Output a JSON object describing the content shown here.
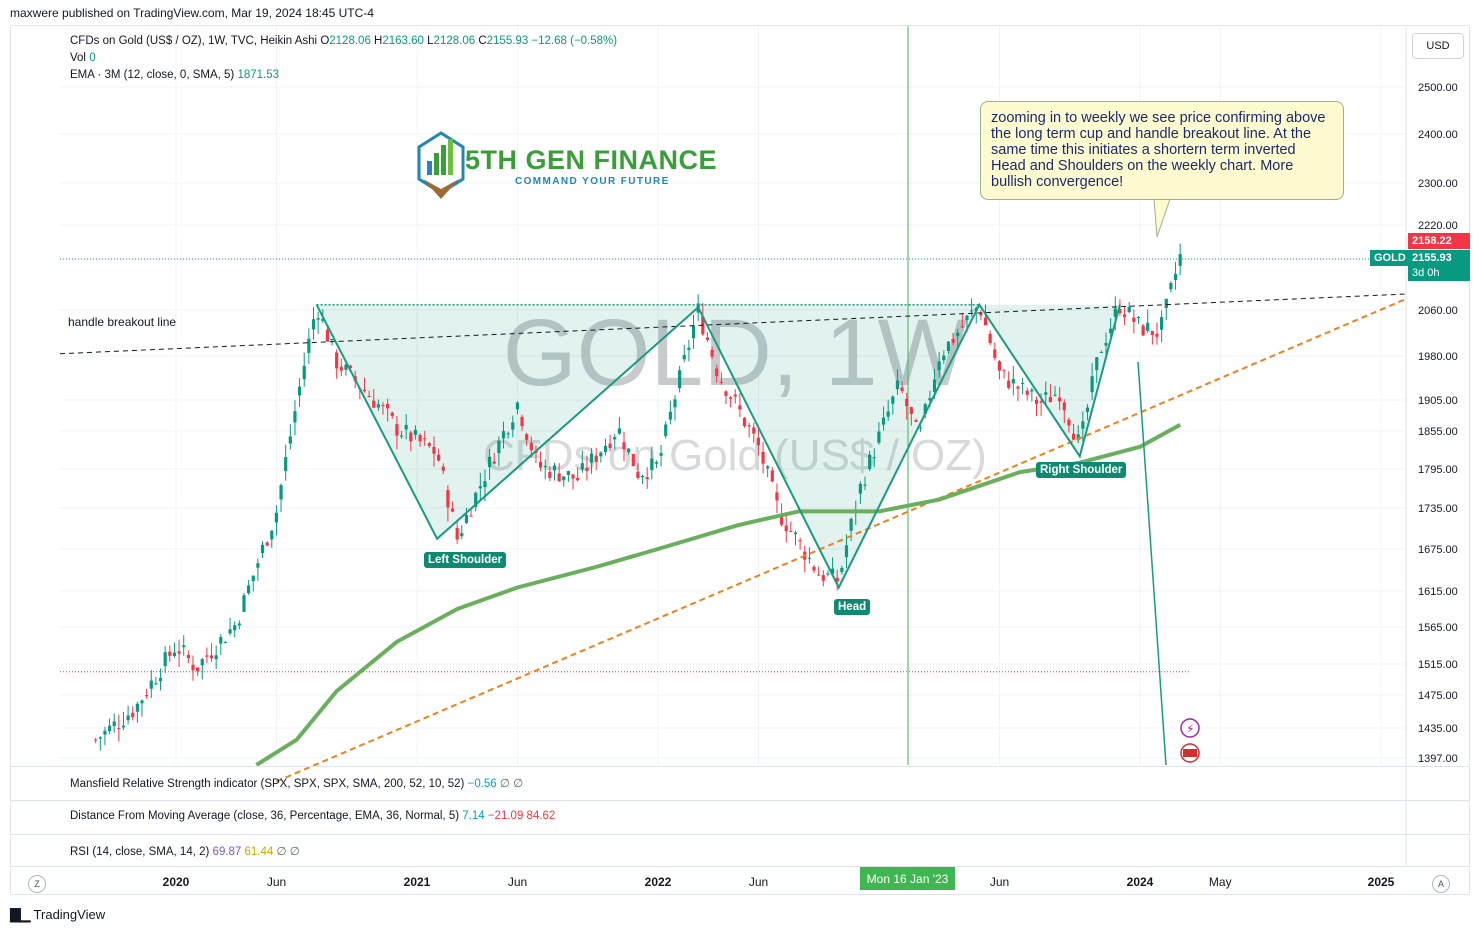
{
  "header": {
    "published_by": "maxwere published on TradingView.com, Mar 19, 2024 18:45 UTC-4"
  },
  "legend": {
    "symbol": "CFDs on Gold (US$ / OZ), 1W, TVC, Heikin Ashi",
    "ohlc": {
      "o_label": "O",
      "o": "2128.06",
      "h_label": "H",
      "h": "2163.60",
      "l_label": "L",
      "l": "2128.06",
      "c_label": "C",
      "c": "2155.93",
      "change": "−12.68 (−0.58%)"
    },
    "vol_label": "Vol",
    "vol": "0",
    "ema_label": "EMA · 3M (12, close, 0, SMA, 5)",
    "ema_value": "1871.53"
  },
  "indicators": {
    "mansfield_label": "Mansfield Relative Strength indicator (SPX, SPX, SPX, SMA, 200, 52, 10, 52)",
    "mansfield_values": [
      "−0.56",
      "∅",
      "∅"
    ],
    "dfma_label": "Distance From Moving Average (close, 36, Percentage, EMA, 36, Normal, 5)",
    "dfma_values": [
      "7.14",
      "−21.09",
      "84.62"
    ],
    "rsi_label": "RSI (14, close, SMA, 14, 2)",
    "rsi_values": [
      "69.87",
      "61.44",
      "∅",
      "∅"
    ]
  },
  "currency": "USD",
  "brand": {
    "title": "5TH GEN FINANCE",
    "subtitle": "COMMAND YOUR FUTURE"
  },
  "note": "zooming in to weekly we see price confirming above the long term cup and handle breakout line.  At the same time this initiates a shortern term inverted Head and Shoulders on the weekly chart.  More bullish convergence!",
  "watermark": {
    "line1": "GOLD, 1W",
    "line2": "CFDs on Gold (US$ / OZ)"
  },
  "annotations": {
    "handle_line": "handle breakout line",
    "left_shoulder": "Left Shoulder",
    "head": "Head",
    "right_shoulder": "Right Shoulder"
  },
  "price_tags": {
    "high": "2158.22",
    "symbol": "GOLD",
    "last": "2155.93",
    "countdown": "3d 0h"
  },
  "x_axis_highlight": "Mon 16 Jan '23",
  "footer": {
    "brand": "TradingView"
  },
  "colors": {
    "up": "#089981",
    "down": "#f23645",
    "pattern": "#1a9a80",
    "ema": "#6aaf5e",
    "trend": "#f0801a",
    "accent": "#3fb750"
  },
  "chart_data": {
    "type": "candlestick",
    "title": "CFDs on Gold (US$ / OZ), 1W, TVC, Heikin Ashi",
    "y_ticks": [
      2500,
      2400,
      2300,
      2220,
      2060,
      1980,
      1905,
      1855,
      1795,
      1735,
      1675,
      1615,
      1565,
      1515,
      1475,
      1435,
      1397
    ],
    "y_tick_labels": [
      "2500.00",
      "2400.00",
      "2300.00",
      "2220.00",
      "2060.00",
      "1980.00",
      "1905.00",
      "1855.00",
      "1795.00",
      "1735.00",
      "1675.00",
      "1615.00",
      "1565.00",
      "1515.00",
      "1475.00",
      "1435.00",
      "1397.00"
    ],
    "x_ticks": [
      "2020",
      "Jun",
      "2021",
      "Jun",
      "2022",
      "Jun",
      "Jun",
      "2024",
      "May",
      "2025"
    ],
    "bold_x_ticks": [
      "2020",
      "2021",
      "2022",
      "2024",
      "2025"
    ],
    "y_range": [
      1380,
      2560
    ],
    "date_range": [
      "2019-09",
      "2025-02"
    ],
    "price_path": [
      [
        "2019-09",
        1420
      ],
      [
        "2019-11",
        1460
      ],
      [
        "2020-01",
        1540
      ],
      [
        "2020-02",
        1510
      ],
      [
        "2020-04",
        1570
      ],
      [
        "2020-06",
        1730
      ],
      [
        "2020-08",
        2070
      ],
      [
        "2020-09",
        1970
      ],
      [
        "2020-11",
        1900
      ],
      [
        "2020-12",
        1860
      ],
      [
        "2021-02",
        1820
      ],
      [
        "2021-03",
        1690
      ],
      [
        "2021-04",
        1760
      ],
      [
        "2021-06",
        1900
      ],
      [
        "2021-07",
        1800
      ],
      [
        "2021-09",
        1780
      ],
      [
        "2021-11",
        1860
      ],
      [
        "2021-12",
        1790
      ],
      [
        "2022-01",
        1800
      ],
      [
        "2022-03",
        2060
      ],
      [
        "2022-04",
        1950
      ],
      [
        "2022-06",
        1830
      ],
      [
        "2022-07",
        1730
      ],
      [
        "2022-09",
        1640
      ],
      [
        "2022-10",
        1630
      ],
      [
        "2022-11",
        1760
      ],
      [
        "2023-01",
        1930
      ],
      [
        "2023-02",
        1840
      ],
      [
        "2023-03",
        1980
      ],
      [
        "2023-05",
        2070
      ],
      [
        "2023-06",
        1950
      ],
      [
        "2023-08",
        1900
      ],
      [
        "2023-09",
        1920
      ],
      [
        "2023-10",
        1830
      ],
      [
        "2023-11",
        1990
      ],
      [
        "2023-12",
        2070
      ],
      [
        "2024-01",
        2030
      ],
      [
        "2024-02",
        2020
      ],
      [
        "2024-03",
        2160
      ]
    ],
    "ema_path": [
      [
        "2020-05",
        1380
      ],
      [
        "2020-07",
        1420
      ],
      [
        "2020-09",
        1480
      ],
      [
        "2020-12",
        1545
      ],
      [
        "2021-03",
        1590
      ],
      [
        "2021-06",
        1620
      ],
      [
        "2021-10",
        1650
      ],
      [
        "2022-01",
        1675
      ],
      [
        "2022-05",
        1710
      ],
      [
        "2022-08",
        1730
      ],
      [
        "2022-12",
        1730
      ],
      [
        "2023-03",
        1748
      ],
      [
        "2023-07",
        1790
      ],
      [
        "2023-10",
        1805
      ],
      [
        "2024-01",
        1830
      ],
      [
        "2024-03",
        1865
      ]
    ],
    "pattern_points": [
      [
        "2020-08",
        2070
      ],
      [
        "2021-02",
        1690
      ],
      [
        "2022-03",
        2065
      ],
      [
        "2022-10",
        1620
      ],
      [
        "2023-05",
        2070
      ],
      [
        "2023-10",
        1815
      ],
      [
        "2023-12",
        2070
      ]
    ],
    "handle_line": [
      [
        "2019-09",
        2010
      ],
      [
        "2025-02",
        2090
      ]
    ],
    "trend_line": [
      [
        "2020-06",
        1380
      ],
      [
        "2025-02",
        2080
      ]
    ],
    "horizontal_levels": [
      2155.93,
      1505
    ]
  }
}
